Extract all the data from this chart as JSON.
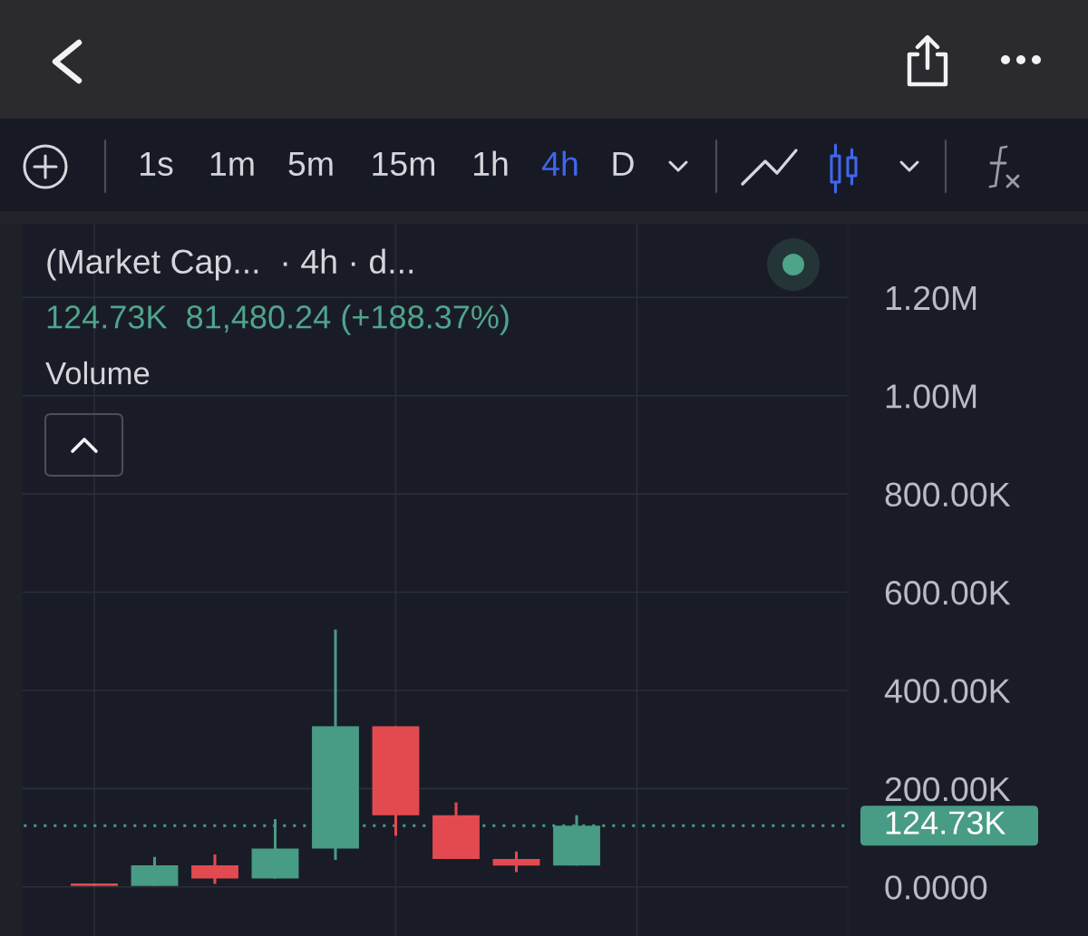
{
  "chart_data": {
    "type": "candlestick",
    "categories": [
      null,
      null,
      null,
      null,
      null,
      null,
      null,
      null,
      null,
      null,
      null,
      null,
      null,
      null
    ],
    "ohlc": [
      null,
      [
        7000,
        7000,
        2000,
        2000
      ],
      [
        2000,
        61000,
        2000,
        44000
      ],
      [
        44000,
        66000,
        6000,
        17000
      ],
      [
        17000,
        138000,
        17000,
        78000
      ],
      [
        78000,
        524000,
        55000,
        327000
      ],
      [
        327000,
        327000,
        104000,
        146000
      ],
      [
        146000,
        172000,
        57000,
        57000
      ],
      [
        57000,
        72000,
        30000,
        43250
      ],
      [
        43250,
        146000,
        43250,
        124730
      ],
      null,
      null,
      null,
      null
    ],
    "colors": [
      null,
      "#e24a50",
      "#489b84",
      "#e24a50",
      "#489b84",
      "#489b84",
      "#e24a50",
      "#e24a50",
      "#e24a50",
      "#489b84",
      null,
      null,
      null,
      null
    ],
    "ylim": [
      -100000,
      1350000
    ],
    "yticks": [
      {
        "value": 0,
        "label": "0.0000"
      },
      {
        "value": 200000,
        "label": "200.00K"
      },
      {
        "value": 400000,
        "label": "400.00K"
      },
      {
        "value": 600000,
        "label": "600.00K"
      },
      {
        "value": 800000,
        "label": "800.00K"
      },
      {
        "value": 1000000,
        "label": "1.00M"
      },
      {
        "value": 1200000,
        "label": "1.20M"
      }
    ],
    "grid": true,
    "tick_labels": "y",
    "ref_lines": [
      {
        "axis": "y",
        "value": 124730,
        "label": "124.73K",
        "color": "#489b84",
        "line_style": "dotted"
      }
    ],
    "annotations": [
      "1s",
      "1m",
      "5m",
      "15m",
      "1h",
      "4h",
      "D",
      "(Market Cap...  · 4h · d...",
      "124.73K  81,480.24 (+188.37%)",
      "Volume"
    ]
  }
}
